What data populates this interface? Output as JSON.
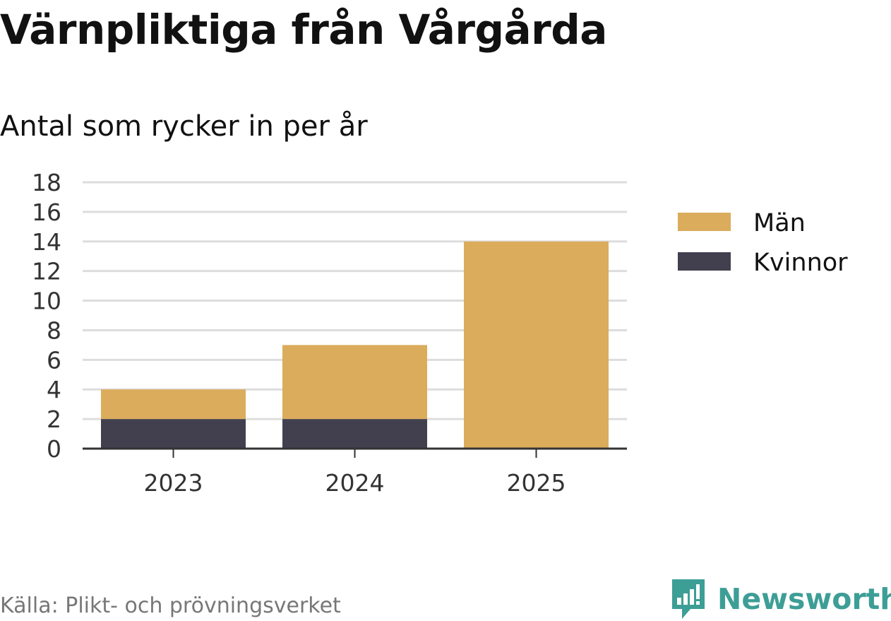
{
  "header": {
    "title": "Värnpliktiga från Vårgårda",
    "subtitle": "Antal som rycker in per år"
  },
  "footer": {
    "source": "Källa: Plikt- och prövningsverket",
    "brand": "Newsworthy",
    "brand_icon": "newsworthy-logo-icon"
  },
  "colors": {
    "man": "#dbac5c",
    "kvinnor": "#42404f",
    "grid": "#dddddd",
    "axis": "#333333",
    "brand": "#3d9e96"
  },
  "chart_data": {
    "type": "bar",
    "stacked": true,
    "categories": [
      "2023",
      "2024",
      "2025"
    ],
    "series": [
      {
        "name": "Kvinnor",
        "values": [
          2,
          2,
          0
        ],
        "color": "#42404f"
      },
      {
        "name": "Män",
        "values": [
          2,
          5,
          14
        ],
        "color": "#dbac5c"
      }
    ],
    "title": "Värnpliktiga från Vårgårda",
    "subtitle": "Antal som rycker in per år",
    "xlabel": "",
    "ylabel": "",
    "ylim": [
      0,
      18
    ],
    "yticks": [
      "0",
      "2",
      "4",
      "6",
      "8",
      "10",
      "12",
      "14",
      "16",
      "18"
    ],
    "grid": true,
    "legend": {
      "placement": "right",
      "entries": [
        "Män",
        "Kvinnor"
      ]
    }
  }
}
